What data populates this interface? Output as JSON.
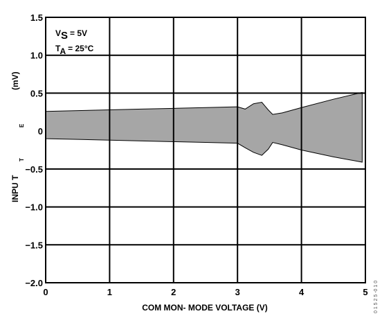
{
  "chart_data": {
    "type": "area",
    "xlabel": "COM MON- MODE VOLTAGE (V)",
    "ylabel_parts": {
      "input": "INPU T",
      "sub_t": "T",
      "sub_e": "E",
      "unit": "(mV)"
    },
    "xlim": [
      0,
      5
    ],
    "ylim": [
      -2.0,
      1.5
    ],
    "x_ticks": [
      {
        "value": 0,
        "label": "0"
      },
      {
        "value": 1,
        "label": "1"
      },
      {
        "value": 2,
        "label": "2"
      },
      {
        "value": 3,
        "label": "3"
      },
      {
        "value": 4,
        "label": "4"
      },
      {
        "value": 5,
        "label": "5"
      }
    ],
    "y_ticks": [
      {
        "value": 1.5,
        "label": "1.5"
      },
      {
        "value": 1.0,
        "label": "1.0"
      },
      {
        "value": 0.5,
        "label": "0.5"
      },
      {
        "value": 0,
        "label": "0"
      },
      {
        "value": -0.5,
        "label": "−0.5"
      },
      {
        "value": -1.0,
        "label": "−1.0"
      },
      {
        "value": -1.5,
        "label": "−1.5"
      },
      {
        "value": -2.0,
        "label": "−2.0"
      }
    ],
    "gridlines_x": [
      1,
      2,
      3,
      4
    ],
    "gridlines_y": [
      1.0,
      0.5,
      -0.5,
      -1.0,
      -1.5
    ],
    "grid": true,
    "band": {
      "upper": [
        [
          0.0,
          0.26
        ],
        [
          0.5,
          0.27
        ],
        [
          1.0,
          0.28
        ],
        [
          1.5,
          0.29
        ],
        [
          2.0,
          0.3
        ],
        [
          2.5,
          0.31
        ],
        [
          3.0,
          0.32
        ],
        [
          3.12,
          0.29
        ],
        [
          3.25,
          0.36
        ],
        [
          3.38,
          0.38
        ],
        [
          3.48,
          0.28
        ],
        [
          3.55,
          0.22
        ],
        [
          3.7,
          0.24
        ],
        [
          4.0,
          0.31
        ],
        [
          4.5,
          0.42
        ],
        [
          4.95,
          0.51
        ]
      ],
      "lower": [
        [
          0.0,
          -0.1
        ],
        [
          0.5,
          -0.11
        ],
        [
          1.0,
          -0.12
        ],
        [
          1.5,
          -0.13
        ],
        [
          2.0,
          -0.14
        ],
        [
          2.5,
          -0.15
        ],
        [
          3.0,
          -0.16
        ],
        [
          3.12,
          -0.22
        ],
        [
          3.25,
          -0.28
        ],
        [
          3.38,
          -0.32
        ],
        [
          3.48,
          -0.24
        ],
        [
          3.55,
          -0.15
        ],
        [
          3.7,
          -0.18
        ],
        [
          4.0,
          -0.25
        ],
        [
          4.5,
          -0.34
        ],
        [
          4.95,
          -0.41
        ]
      ],
      "fill_color": "#a6a6a6"
    },
    "annotations": {
      "vs_prefix": "V",
      "vs_sub": "S",
      "vs_rest": "= 5V",
      "ta_prefix": "T",
      "ta_sub": "A",
      "ta_rest": "= 25°C"
    },
    "figure_id": "0 1 5 2 5 -0 1 0"
  }
}
